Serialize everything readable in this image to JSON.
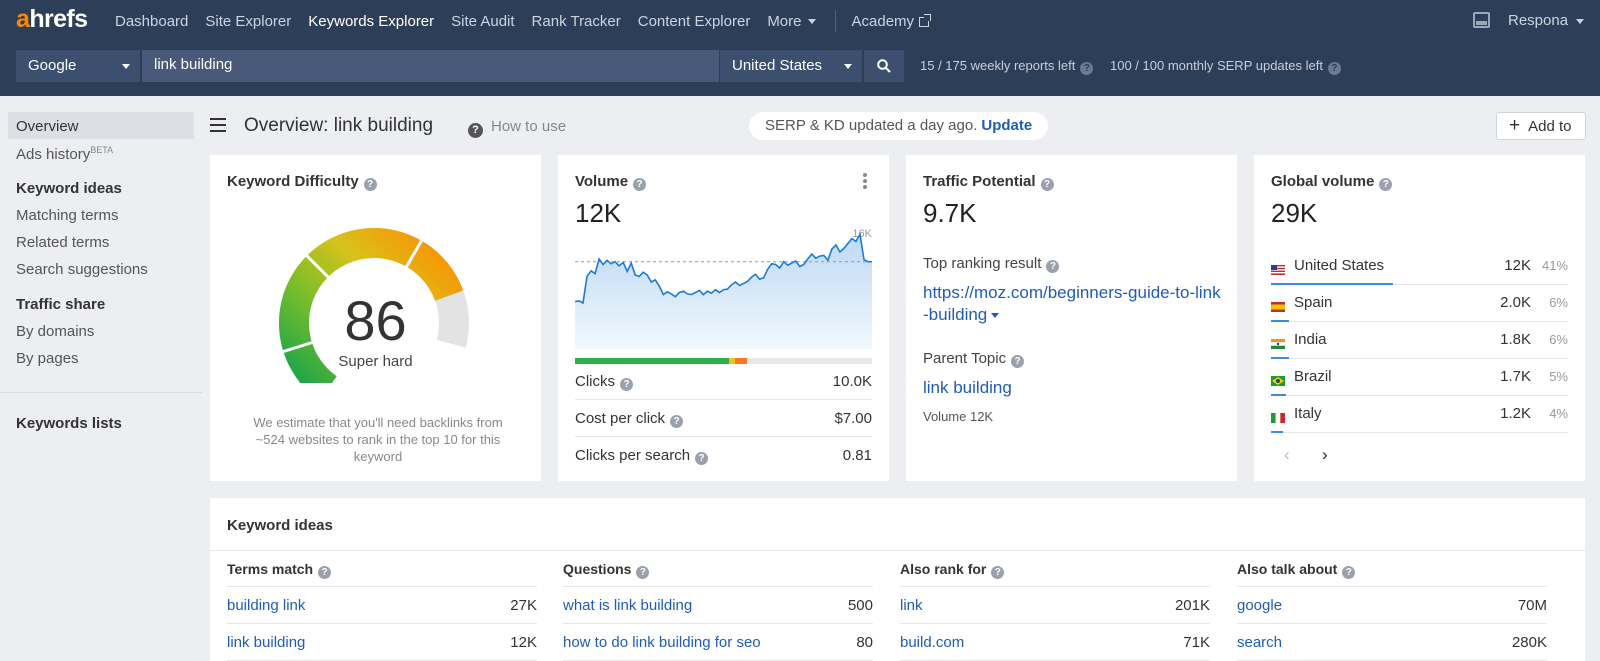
{
  "brand": {
    "logo_a": "a",
    "logo_rest": "hrefs"
  },
  "nav": {
    "items": [
      "Dashboard",
      "Site Explorer",
      "Keywords Explorer",
      "Site Audit",
      "Rank Tracker",
      "Content Explorer"
    ],
    "active": "Keywords Explorer",
    "more": "More",
    "academy": "Academy",
    "account": "Respona"
  },
  "search": {
    "engine": "Google",
    "keyword": "link building",
    "country": "United States",
    "weekly_reports": "15 / 175 weekly reports left",
    "serp_updates": "100 / 100 monthly SERP updates left"
  },
  "sidebar": {
    "overview": "Overview",
    "ads_history": "Ads history",
    "beta": "BETA",
    "keyword_ideas": "Keyword ideas",
    "matching_terms": "Matching terms",
    "related_terms": "Related terms",
    "search_suggestions": "Search suggestions",
    "traffic_share": "Traffic share",
    "by_domains": "By domains",
    "by_pages": "By pages",
    "keywords_lists": "Keywords lists"
  },
  "header": {
    "title": "Overview: link building",
    "how_to_use": "How to use",
    "serp_notice": "SERP & KD updated a day ago.",
    "update": "Update",
    "add_to": "Add to"
  },
  "kd": {
    "title": "Keyword Difficulty",
    "value": "86",
    "label": "Super hard",
    "level": 86,
    "note": "We estimate that you'll need backlinks from ~524 websites to rank in the top 10 for this keyword"
  },
  "volume": {
    "title": "Volume",
    "value": "12K",
    "axis_max": "16K",
    "trend": [
      6.2,
      6.3,
      6.0,
      9.8,
      10.6,
      10.2,
      12.3,
      11.5,
      12.1,
      11.6,
      11.9,
      11.3,
      11.8,
      10.5,
      11.7,
      10.0,
      9.8,
      10.4,
      10.0,
      9.0,
      9.3,
      8.4,
      7.2,
      7.6,
      7.3,
      6.9,
      7.5,
      7.7,
      7.3,
      7.2,
      7.5,
      7.8,
      7.2,
      7.7,
      7.4,
      7.9,
      7.5,
      7.9,
      8.0,
      8.6,
      9.0,
      8.5,
      8.8,
      9.1,
      9.7,
      10.1,
      9.4,
      9.6,
      10.8,
      11.6,
      11.5,
      11.0,
      11.9,
      11.4,
      11.7,
      12.0,
      11.2,
      11.5,
      12.3,
      13.0,
      12.4,
      12.7,
      12.8,
      12.1,
      13.7,
      14.3,
      13.3,
      13.8,
      14.5,
      15.2,
      14.8,
      15.8,
      12.2,
      11.9,
      11.9
    ],
    "avg": 11.9,
    "clicks_split": {
      "organic": 0.52,
      "yellow": 0.02,
      "paid": 0.04
    },
    "clicks_label": "Clicks",
    "clicks_value": "10.0K",
    "cpc_label": "Cost per click",
    "cpc_value": "$7.00",
    "cps_label": "Clicks per search",
    "cps_value": "0.81",
    "colors": {
      "line": "#1b7bd6",
      "organic": "#2bb14b",
      "paid": "#f57a1f",
      "yellow": "#f0c419"
    }
  },
  "traffic": {
    "title": "Traffic Potential",
    "value": "9.7K",
    "top_label": "Top ranking result",
    "url_line1": "https://moz.com/beginners-guide-to-link",
    "url_line2": "-building",
    "parent_label": "Parent Topic",
    "parent_value": "link building",
    "parent_volume": "Volume 12K"
  },
  "global": {
    "title": "Global volume",
    "value": "29K",
    "countries": [
      {
        "name": "United States",
        "value": "12K",
        "pct": "41%",
        "share": 0.41,
        "flag": "us-flag-icon"
      },
      {
        "name": "Spain",
        "value": "2.0K",
        "pct": "6%",
        "share": 0.06,
        "flag": "es-flag-icon"
      },
      {
        "name": "India",
        "value": "1.8K",
        "pct": "6%",
        "share": 0.06,
        "flag": "in-flag-icon"
      },
      {
        "name": "Brazil",
        "value": "1.7K",
        "pct": "5%",
        "share": 0.05,
        "flag": "br-flag-icon"
      },
      {
        "name": "Italy",
        "value": "1.2K",
        "pct": "4%",
        "share": 0.04,
        "flag": "it-flag-icon"
      }
    ],
    "prev": "‹",
    "next": "›"
  },
  "ideas": {
    "title": "Keyword ideas",
    "columns": [
      {
        "header": "Terms match",
        "rows": [
          {
            "kw": "building link",
            "v": "27K"
          },
          {
            "kw": "link building",
            "v": "12K"
          }
        ]
      },
      {
        "header": "Questions",
        "rows": [
          {
            "kw": "what is link building",
            "v": "500"
          },
          {
            "kw": "how to do link building for seo",
            "v": "80"
          }
        ]
      },
      {
        "header": "Also rank for",
        "rows": [
          {
            "kw": "link",
            "v": "201K"
          },
          {
            "kw": "build.com",
            "v": "71K"
          }
        ]
      },
      {
        "header": "Also talk about",
        "rows": [
          {
            "kw": "google",
            "v": "70M"
          },
          {
            "kw": "search",
            "v": "280K"
          }
        ]
      }
    ]
  }
}
